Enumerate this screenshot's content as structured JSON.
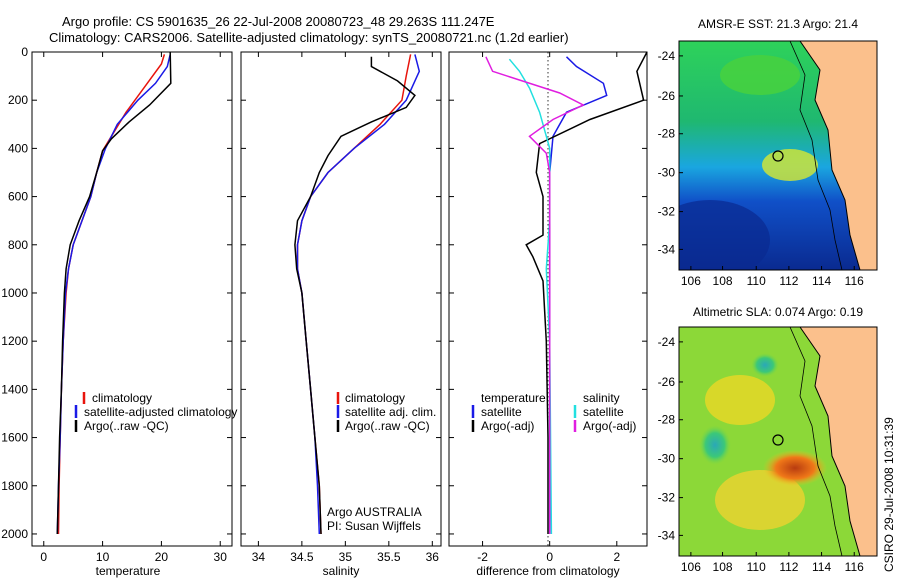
{
  "title_line1": "Argo profile: CS 5901635_26 22-Jul-2008 20080723_48 29.263S 111.247E",
  "title_line2": "Climatology: CARS2006. Satellite-adjusted climatology: synTS_20080721.nc (1.2d earlier)",
  "side_text": "CSIRO 29-Jul-2008 10:31:39",
  "colors": {
    "red": "#e8140c",
    "blue": "#1a1ae6",
    "black": "#000000",
    "cyan": "#22e0e0",
    "magenta": "#e01ee0",
    "land": "#fbc08c"
  },
  "chart_data": [
    {
      "type": "line",
      "id": "temperature",
      "xlabel": "temperature",
      "xlim": [
        -2,
        32
      ],
      "ylim": [
        0,
        2050
      ],
      "xticks": [
        0,
        10,
        20,
        30
      ],
      "yticks": [
        0,
        200,
        400,
        600,
        800,
        1000,
        1200,
        1400,
        1600,
        1800,
        2000
      ],
      "series": [
        {
          "name": "climatology",
          "color": "red",
          "points": [
            [
              20.5,
              10
            ],
            [
              20,
              50
            ],
            [
              17,
              150
            ],
            [
              14,
              250
            ],
            [
              11.5,
              350
            ],
            [
              10,
              410
            ],
            [
              9,
              500
            ],
            [
              8,
              600
            ],
            [
              6.5,
              700
            ],
            [
              5,
              800
            ],
            [
              4.2,
              900
            ],
            [
              3.8,
              1000
            ],
            [
              3.3,
              1200
            ],
            [
              3,
              1400
            ],
            [
              2.8,
              1600
            ],
            [
              2.6,
              1800
            ],
            [
              2.5,
              2000
            ]
          ]
        },
        {
          "name": "satellite-adjusted climatology",
          "color": "blue",
          "points": [
            [
              21.5,
              10
            ],
            [
              21,
              60
            ],
            [
              19,
              130
            ],
            [
              16,
              200
            ],
            [
              12.5,
              300
            ],
            [
              10.5,
              400
            ],
            [
              9,
              500
            ],
            [
              8,
              600
            ],
            [
              6.5,
              700
            ],
            [
              5,
              800
            ],
            [
              4.2,
              900
            ],
            [
              3.7,
              1000
            ],
            [
              3.3,
              1200
            ],
            [
              3,
              1400
            ],
            [
              2.8,
              1600
            ],
            [
              2.5,
              1800
            ],
            [
              2.3,
              2000
            ]
          ]
        },
        {
          "name": "Argo(..raw -QC)",
          "color": "black",
          "points": [
            [
              21.5,
              0
            ],
            [
              21.6,
              130
            ],
            [
              18,
              220
            ],
            [
              14.5,
              290
            ],
            [
              11.5,
              360
            ],
            [
              10,
              410
            ],
            [
              9,
              500
            ],
            [
              7.8,
              600
            ],
            [
              6,
              700
            ],
            [
              4.5,
              800
            ],
            [
              3.8,
              900
            ],
            [
              3.5,
              1000
            ],
            [
              3.2,
              1200
            ],
            [
              3,
              1400
            ],
            [
              2.7,
              1600
            ],
            [
              2.5,
              1800
            ],
            [
              2.3,
              2000
            ]
          ]
        }
      ],
      "legend": [
        "climatology",
        "satellite-adjusted climatology",
        "Argo(..raw -QC)"
      ]
    },
    {
      "type": "line",
      "id": "salinity",
      "xlabel": "salinity",
      "xlim": [
        33.8,
        36.1
      ],
      "ylim": [
        0,
        2050
      ],
      "xticks": [
        34,
        34.5,
        35,
        35.5,
        36
      ],
      "series": [
        {
          "name": "climatology",
          "color": "red",
          "points": [
            [
              35.75,
              10
            ],
            [
              35.7,
              100
            ],
            [
              35.65,
              200
            ],
            [
              35.4,
              300
            ],
            [
              35.1,
              400
            ],
            [
              34.8,
              500
            ],
            [
              34.6,
              600
            ],
            [
              34.5,
              700
            ],
            [
              34.45,
              800
            ],
            [
              34.45,
              900
            ],
            [
              34.5,
              1000
            ],
            [
              34.55,
              1200
            ],
            [
              34.6,
              1400
            ],
            [
              34.65,
              1600
            ],
            [
              34.7,
              1800
            ],
            [
              34.72,
              2000
            ]
          ]
        },
        {
          "name": "satellite adj. clim.",
          "color": "blue",
          "points": [
            [
              35.8,
              10
            ],
            [
              35.85,
              80
            ],
            [
              35.7,
              200
            ],
            [
              35.45,
              300
            ],
            [
              35.1,
              400
            ],
            [
              34.8,
              500
            ],
            [
              34.6,
              600
            ],
            [
              34.5,
              700
            ],
            [
              34.45,
              800
            ],
            [
              34.45,
              900
            ],
            [
              34.5,
              1000
            ],
            [
              34.55,
              1200
            ],
            [
              34.6,
              1400
            ],
            [
              34.65,
              1600
            ],
            [
              34.68,
              1800
            ],
            [
              34.7,
              2000
            ]
          ]
        },
        {
          "name": "Argo(..raw -QC)",
          "color": "black",
          "points": [
            [
              35.3,
              20
            ],
            [
              35.3,
              60
            ],
            [
              35.6,
              120
            ],
            [
              35.8,
              180
            ],
            [
              35.7,
              230
            ],
            [
              35.3,
              290
            ],
            [
              34.95,
              350
            ],
            [
              34.8,
              430
            ],
            [
              34.7,
              500
            ],
            [
              34.6,
              600
            ],
            [
              34.45,
              700
            ],
            [
              34.42,
              800
            ],
            [
              34.44,
              900
            ],
            [
              34.5,
              1000
            ],
            [
              34.55,
              1200
            ],
            [
              34.6,
              1400
            ],
            [
              34.65,
              1600
            ],
            [
              34.7,
              1800
            ],
            [
              34.72,
              2000
            ]
          ]
        }
      ],
      "legend": [
        "climatology",
        "satellite adj. clim.",
        "Argo(..raw -QC)"
      ],
      "annotation": [
        "Argo AUSTRALIA",
        "PI: Susan Wijffels"
      ]
    },
    {
      "type": "line",
      "id": "difference",
      "xlabel": "difference from climatology",
      "xlim": [
        -3,
        2.9
      ],
      "ylim": [
        0,
        2050
      ],
      "xticks": [
        -2,
        0,
        2
      ],
      "series": [
        {
          "name": "temperature satellite",
          "color": "blue",
          "points": [
            [
              0.5,
              20
            ],
            [
              0.8,
              60
            ],
            [
              1.6,
              130
            ],
            [
              1.7,
              180
            ],
            [
              0.5,
              250
            ],
            [
              0.1,
              350
            ],
            [
              0,
              500
            ],
            [
              0,
              2000
            ]
          ]
        },
        {
          "name": "temperature Argo(-adj)",
          "color": "black",
          "points": [
            [
              2.9,
              0
            ],
            [
              2.6,
              80
            ],
            [
              2.8,
              200
            ],
            [
              1.2,
              280
            ],
            [
              -0.3,
              380
            ],
            [
              -0.4,
              500
            ],
            [
              -0.2,
              600
            ],
            [
              -0.2,
              760
            ],
            [
              -0.7,
              800
            ],
            [
              -0.5,
              850
            ],
            [
              -0.2,
              950
            ],
            [
              -0.1,
              1200
            ],
            [
              -0.05,
              1600
            ],
            [
              -0.05,
              2000
            ]
          ]
        },
        {
          "name": "salinity satellite",
          "color": "cyan",
          "points": [
            [
              -1.2,
              30
            ],
            [
              -0.9,
              80
            ],
            [
              -0.6,
              150
            ],
            [
              -0.3,
              250
            ],
            [
              0,
              400
            ],
            [
              0,
              700
            ],
            [
              -0.1,
              900
            ],
            [
              0,
              1200
            ],
            [
              0.05,
              2000
            ]
          ]
        },
        {
          "name": "salinity Argo(-adj)",
          "color": "magenta",
          "points": [
            [
              -1.9,
              20
            ],
            [
              -1.7,
              80
            ],
            [
              0.3,
              170
            ],
            [
              1.0,
              220
            ],
            [
              0.1,
              280
            ],
            [
              -0.6,
              350
            ],
            [
              -0.1,
              420
            ],
            [
              0,
              500
            ],
            [
              0,
              2000
            ]
          ]
        }
      ],
      "legend_temperature_header": "temperature",
      "legend_salinity_header": "salinity",
      "legend_temperature": [
        "satellite",
        "Argo(-adj)"
      ],
      "legend_salinity": [
        "satellite",
        "Argo(-adj)"
      ]
    }
  ],
  "maps": [
    {
      "id": "sst",
      "title": "AMSR-E SST: 21.3 Argo: 21.4",
      "lon_ticks": [
        "106",
        "108",
        "110",
        "112",
        "114",
        "116"
      ],
      "lat_ticks": [
        "-24",
        "-26",
        "-28",
        "-30",
        "-32",
        "-34"
      ],
      "argo_lon": 111.247,
      "argo_lat": -29.263
    },
    {
      "id": "sla",
      "title": "Altimetric SLA: 0.074 Argo: 0.19",
      "lon_ticks": [
        "106",
        "108",
        "110",
        "112",
        "114",
        "116"
      ],
      "lat_ticks": [
        "-24",
        "-26",
        "-28",
        "-30",
        "-32",
        "-34"
      ],
      "argo_lon": 111.247,
      "argo_lat": -29.263
    }
  ]
}
